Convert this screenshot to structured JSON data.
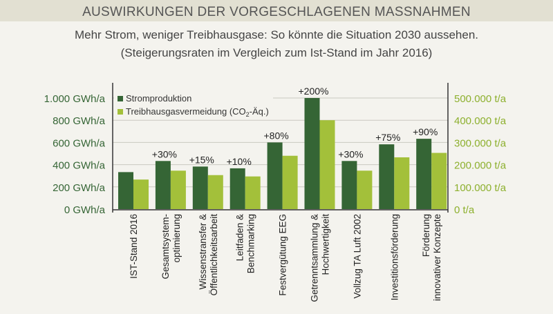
{
  "header": {
    "title": "AUSWIRKUNGEN DER VORGESCHLAGENEN MASSNAHMEN",
    "subtitle_line1": "Mehr Strom, weniger Treibhausgase: So könnte die Situation 2030 aussehen.",
    "subtitle_line2": "(Steigerungsraten im Vergleich zum Ist-Stand im Jahr 2016)"
  },
  "colors": {
    "strom": "#356535",
    "thg": "#a3c03a",
    "band": "#e2e0d2",
    "background": "#f4f3ee"
  },
  "chart_data": {
    "type": "bar",
    "categories": [
      [
        "IST-Stand 2016"
      ],
      [
        "Gesamtsystem-",
        "optimierung"
      ],
      [
        "Wissenstransfer &",
        "Öffentlichkeitsarbeit"
      ],
      [
        "Leitfaden &",
        "Benchmarking"
      ],
      [
        "Festvergütung EEG"
      ],
      [
        "Getrenntsammlung &",
        "Hochwertigkeit"
      ],
      [
        "Vollzug TA Luft 2002"
      ],
      [
        "Investitionsförderung"
      ],
      [
        "Förderung",
        "innovativer Konzepte"
      ]
    ],
    "series": [
      {
        "name": "Stromproduktion",
        "axis": "left",
        "unit": "GWh/a",
        "values": [
          333,
          433,
          383,
          367,
          600,
          1000,
          433,
          583,
          633
        ]
      },
      {
        "name": "Treibhausgasvermeidung (CO2-Äq.)",
        "legend_main": "Treibhausgasvermeidung (CO",
        "legend_sub": "2",
        "legend_tail": "-Äq.)",
        "axis": "right",
        "unit": "t/a",
        "values": [
          133000,
          173000,
          153000,
          147000,
          240000,
          400000,
          173000,
          233000,
          253000
        ]
      }
    ],
    "annotations": [
      "",
      "+30%",
      "+15%",
      "+10%",
      "+80%",
      "+200%",
      "+30%",
      "+75%",
      "+90%"
    ],
    "left_axis": {
      "range": [
        0,
        1000
      ],
      "ticks": [
        0,
        200,
        400,
        600,
        800,
        1000
      ],
      "tick_labels": [
        "0 GWh/a",
        "200 GWh/a",
        "400 GWh/a",
        "600 GWh/a",
        "800 GWh/a",
        "1.000 GWh/a"
      ]
    },
    "right_axis": {
      "range": [
        0,
        500000
      ],
      "ticks": [
        0,
        100000,
        200000,
        300000,
        400000,
        500000
      ],
      "tick_labels": [
        "0 t/a",
        "100.000 t/a",
        "200.000 t/a",
        "300.000 t/a",
        "400.000 t/a",
        "500.000 t/a"
      ]
    },
    "grid": true,
    "legend_position": "top-left"
  }
}
